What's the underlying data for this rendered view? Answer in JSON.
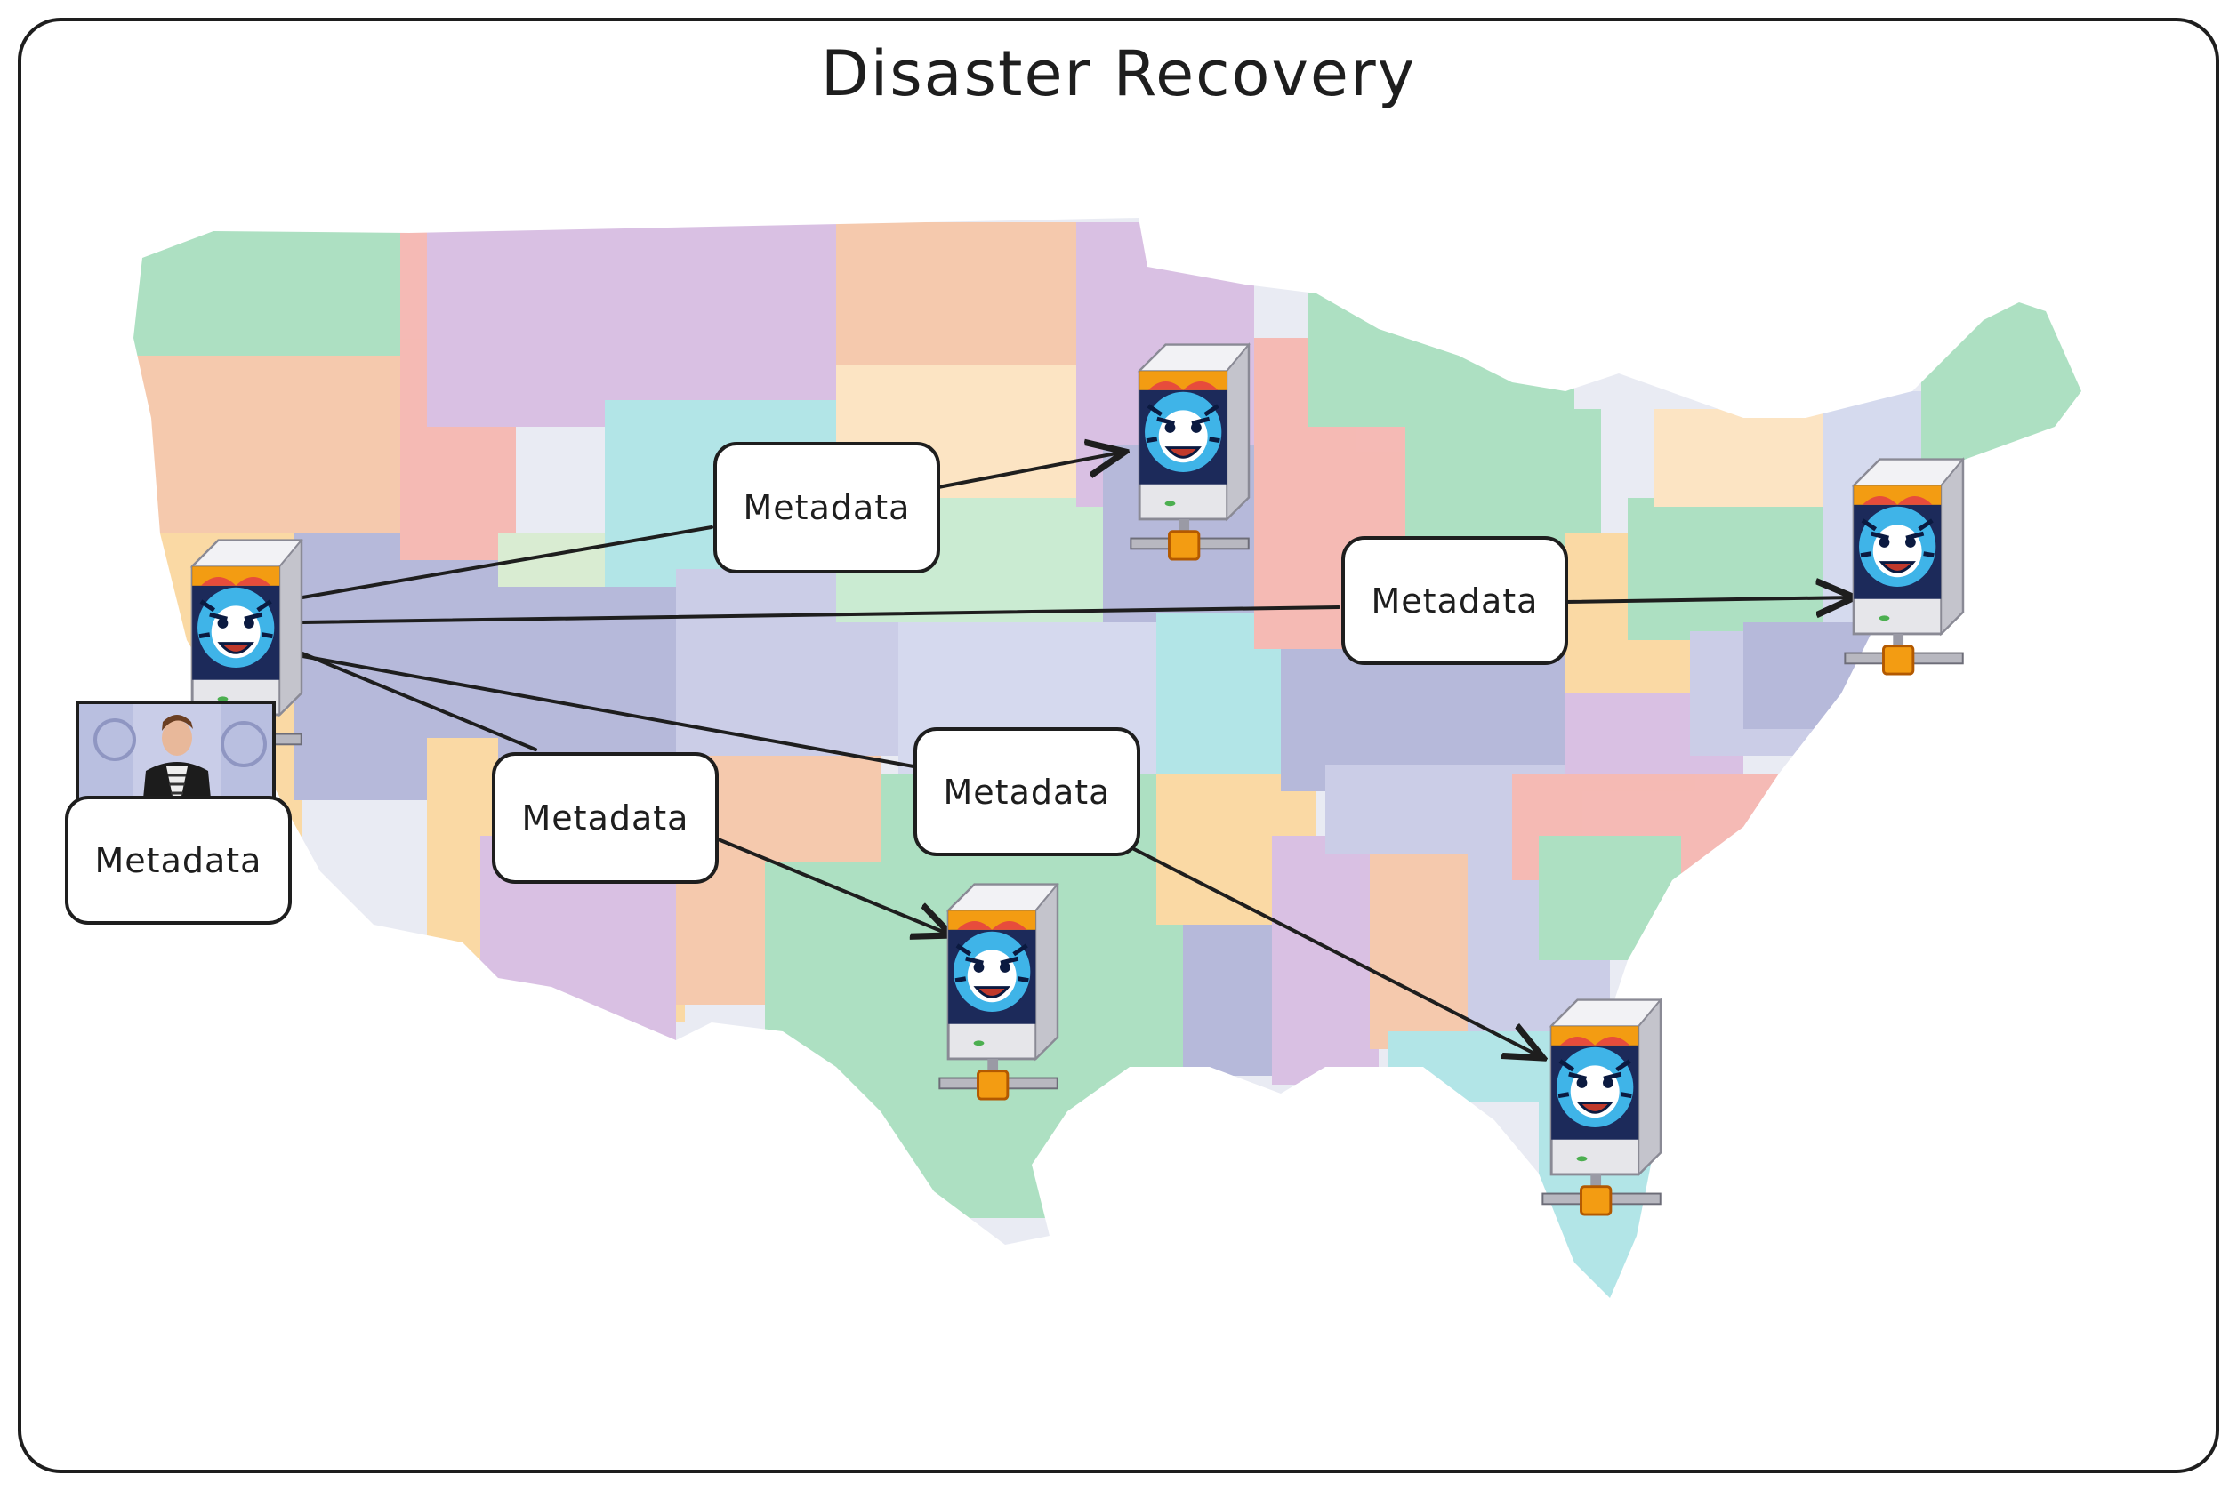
{
  "title": "Disaster Recovery",
  "labels": {
    "l1": "Metadata",
    "l2": "Metadata",
    "l3": "Metadata",
    "l4": "Metadata",
    "l5": "Metadata"
  },
  "colors": {
    "stroke": "#1e1e1e",
    "state_green": "#a9dfbf",
    "state_pink": "#f5b7b1",
    "state_purple": "#d7bde2",
    "state_peach": "#fad7a0",
    "state_blue": "#b3b6d9",
    "state_cyan": "#aee4e6",
    "server_accent": "#f39c12"
  },
  "icons": [
    "server-icon",
    "tiger-mascot-icon",
    "network-connector-icon"
  ]
}
